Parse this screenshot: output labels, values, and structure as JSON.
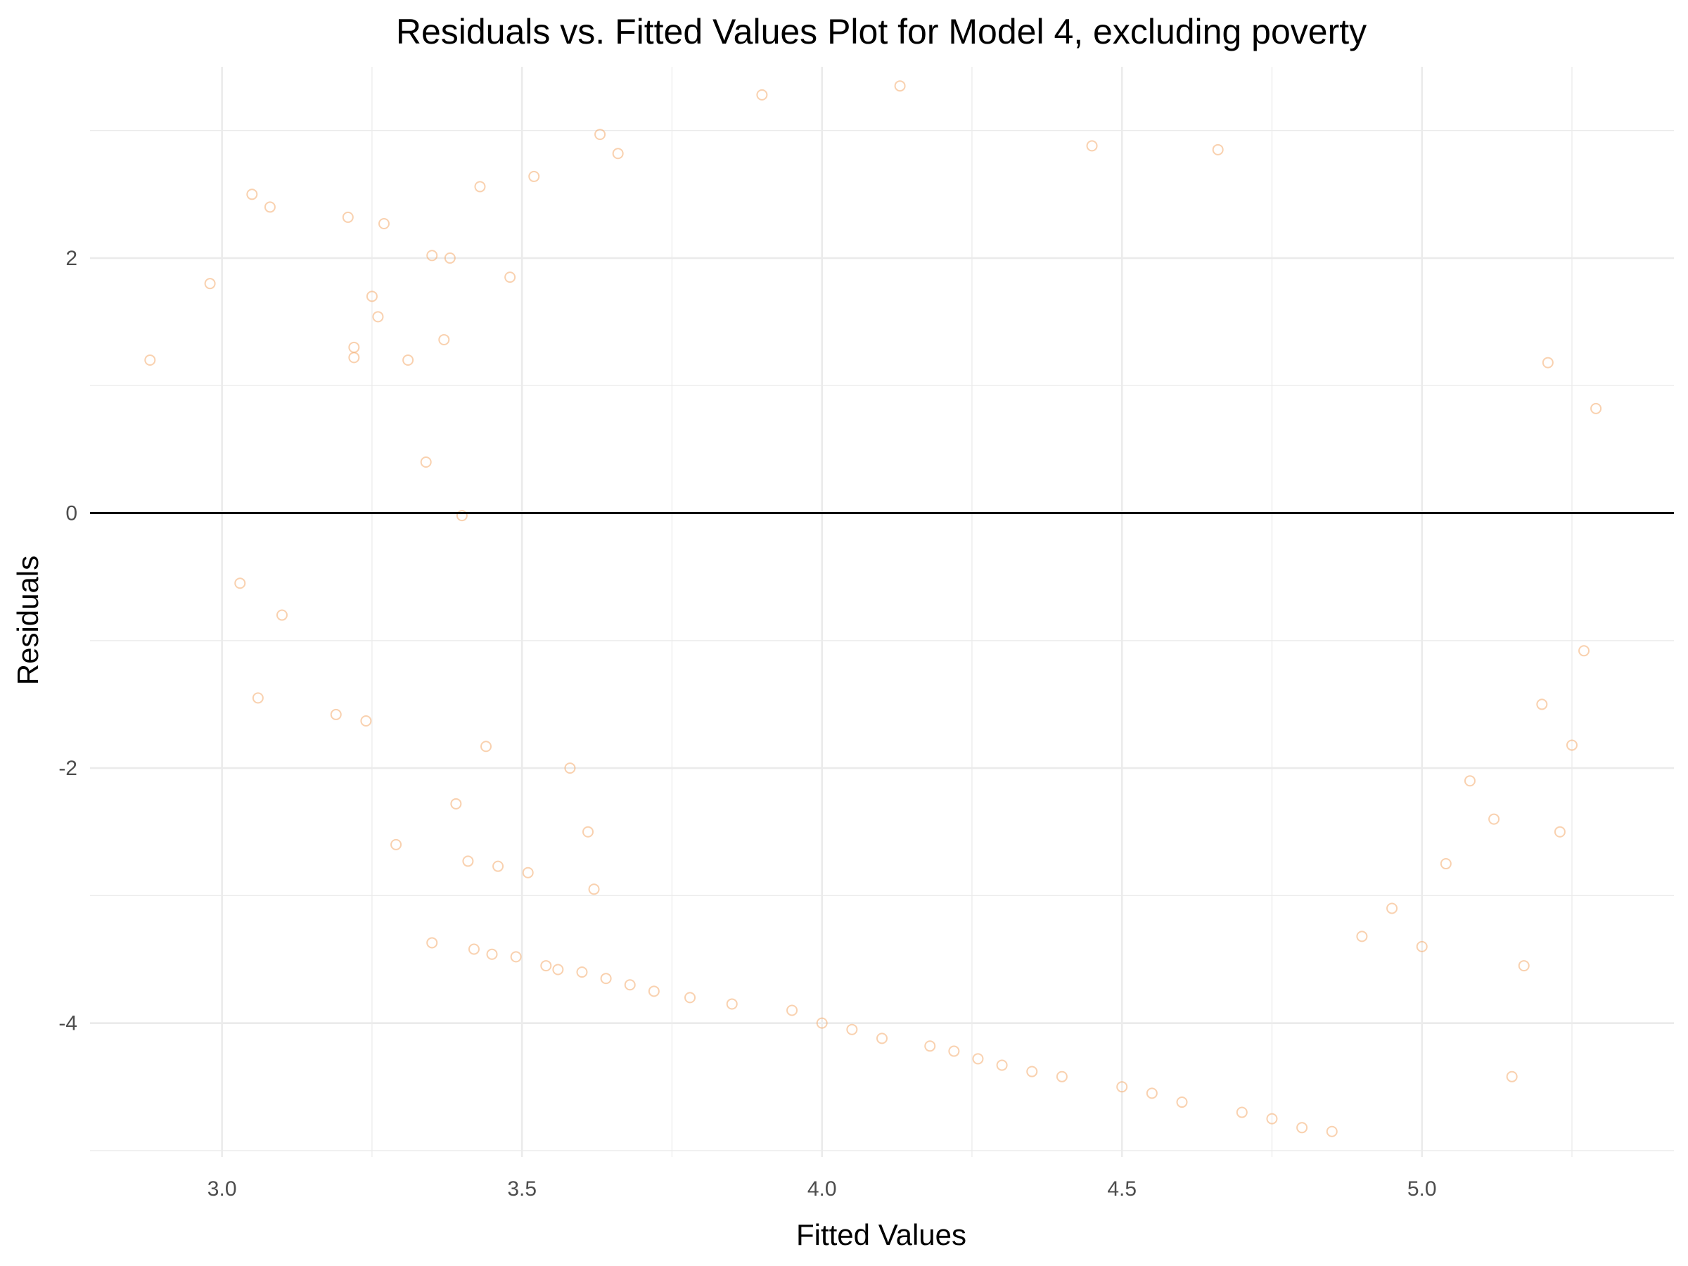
{
  "chart_data": {
    "type": "scatter",
    "title": "Residuals vs. Fitted Values Plot for Model 4, excluding poverty",
    "xlabel": "Fitted Values",
    "ylabel": "Residuals",
    "xlim": [
      2.78,
      5.42
    ],
    "ylim": [
      -5.05,
      3.5
    ],
    "x_ticks": [
      3.0,
      3.5,
      4.0,
      4.5,
      5.0
    ],
    "x_tick_labels": [
      "3.0",
      "3.5",
      "4.0",
      "4.5",
      "5.0"
    ],
    "y_ticks": [
      -4,
      -2,
      0,
      2
    ],
    "y_tick_labels": [
      "-4",
      "-2",
      "0",
      "2"
    ],
    "grid": true,
    "legend": "none",
    "reference_line": {
      "orientation": "horizontal",
      "y": 0,
      "color": "#000000"
    },
    "point_color": "#F4A460",
    "point_opacity": 0.5,
    "series": [
      {
        "x": [
          2.88,
          2.98,
          3.03,
          3.05,
          3.06,
          3.08,
          3.1,
          3.19,
          3.21,
          3.22,
          3.22,
          3.24,
          3.25,
          3.26,
          3.27,
          3.29,
          3.31,
          3.34,
          3.35,
          3.35,
          3.37,
          3.38,
          3.39,
          3.4,
          3.41,
          3.42,
          3.43,
          3.44,
          3.45,
          3.46,
          3.48,
          3.49,
          3.51,
          3.52,
          3.54,
          3.56,
          3.58,
          3.6,
          3.61,
          3.62,
          3.63,
          3.64,
          3.66,
          3.68,
          3.72,
          3.78,
          3.85,
          3.9,
          3.95,
          4.0,
          4.05,
          4.1,
          4.13,
          4.18,
          4.22,
          4.26,
          4.3,
          4.35,
          4.4,
          4.45,
          4.5,
          4.55,
          4.6,
          4.66,
          4.7,
          4.75,
          4.8,
          4.85,
          4.9,
          4.95,
          5.0,
          5.04,
          5.08,
          5.12,
          5.15,
          5.17,
          5.2,
          5.21,
          5.23,
          5.25,
          5.27,
          5.29
        ],
        "y": [
          1.2,
          1.8,
          -0.55,
          2.5,
          -1.45,
          2.4,
          -0.8,
          -1.58,
          2.32,
          1.3,
          1.22,
          -1.63,
          1.7,
          1.54,
          2.27,
          -2.6,
          1.2,
          0.4,
          2.02,
          -3.37,
          1.36,
          2.0,
          -2.28,
          -0.02,
          -2.73,
          -3.42,
          2.56,
          -1.83,
          -3.46,
          -2.77,
          1.85,
          -3.48,
          -2.82,
          2.64,
          -3.55,
          -3.58,
          -2.0,
          -3.6,
          -2.5,
          -2.95,
          2.97,
          -3.65,
          2.82,
          -3.7,
          -3.75,
          -3.8,
          -3.85,
          3.28,
          -3.9,
          -4.0,
          -4.05,
          -4.12,
          3.35,
          -4.18,
          -4.22,
          -4.28,
          -4.33,
          -4.38,
          -4.42,
          2.88,
          -4.5,
          -4.55,
          -4.62,
          2.85,
          -4.7,
          -4.75,
          -4.82,
          -4.85,
          -3.32,
          -3.1,
          -3.4,
          -2.75,
          -2.1,
          -2.4,
          -4.42,
          -3.55,
          -1.5,
          1.18,
          -2.5,
          -1.82,
          -1.08,
          0.82
        ]
      }
    ]
  }
}
